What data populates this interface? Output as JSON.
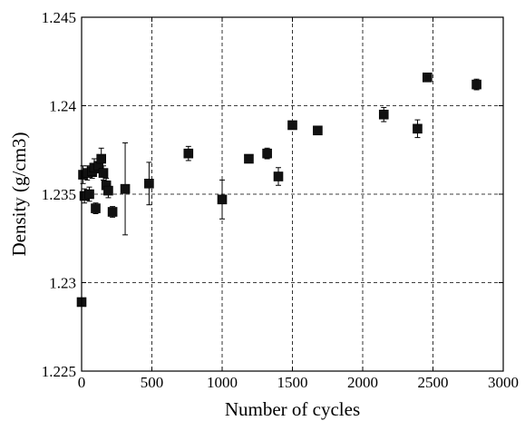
{
  "chart_data": {
    "type": "scatter",
    "title": "",
    "xlabel": "Number of cycles",
    "ylabel": "Density (g/cm3)",
    "xlim": [
      0,
      3000
    ],
    "ylim": [
      1.225,
      1.245
    ],
    "xticks": [
      0,
      500,
      1000,
      1500,
      2000,
      2500,
      3000
    ],
    "yticks": [
      1.225,
      1.23,
      1.235,
      1.24,
      1.245
    ],
    "xtick_labels": [
      "0",
      "500",
      "1000",
      "1500",
      "2000",
      "2500",
      "3000"
    ],
    "ytick_labels": [
      "1.225",
      "1.23",
      "1.235",
      "1.24",
      "1.245"
    ],
    "grid": true,
    "marker": "square",
    "marker_color": "#111111",
    "series": [
      {
        "points": [
          {
            "x": 0,
            "y": 1.2289,
            "err": 0.0
          },
          {
            "x": 10,
            "y": 1.2361,
            "err": 0.0005
          },
          {
            "x": 20,
            "y": 1.2349,
            "err": 0.0004
          },
          {
            "x": 40,
            "y": 1.2362,
            "err": 0.0004
          },
          {
            "x": 55,
            "y": 1.235,
            "err": 0.0004
          },
          {
            "x": 75,
            "y": 1.2363,
            "err": 0.0004
          },
          {
            "x": 90,
            "y": 1.2365,
            "err": 0.0005
          },
          {
            "x": 100,
            "y": 1.2342,
            "err": 0.0003
          },
          {
            "x": 120,
            "y": 1.2366,
            "err": 0.0004
          },
          {
            "x": 140,
            "y": 1.237,
            "err": 0.0006
          },
          {
            "x": 155,
            "y": 1.2362,
            "err": 0.0004
          },
          {
            "x": 175,
            "y": 1.2355,
            "err": 0.0004
          },
          {
            "x": 190,
            "y": 1.2352,
            "err": 0.0004
          },
          {
            "x": 220,
            "y": 1.234,
            "err": 0.0003
          },
          {
            "x": 310,
            "y": 1.2353,
            "err": 0.0026
          },
          {
            "x": 480,
            "y": 1.2356,
            "err": 0.0012
          },
          {
            "x": 760,
            "y": 1.2373,
            "err": 0.0004
          },
          {
            "x": 1000,
            "y": 1.2347,
            "err": 0.0011
          },
          {
            "x": 1190,
            "y": 1.237,
            "err": 0.0002
          },
          {
            "x": 1320,
            "y": 1.2373,
            "err": 0.0003
          },
          {
            "x": 1400,
            "y": 1.236,
            "err": 0.0005
          },
          {
            "x": 1500,
            "y": 1.2389,
            "err": 0.0002
          },
          {
            "x": 1680,
            "y": 1.2386,
            "err": 0.0002
          },
          {
            "x": 2150,
            "y": 1.2395,
            "err": 0.0004
          },
          {
            "x": 2390,
            "y": 1.2387,
            "err": 0.0005
          },
          {
            "x": 2460,
            "y": 1.2416,
            "err": 0.0002
          },
          {
            "x": 2810,
            "y": 1.2412,
            "err": 0.0003
          }
        ]
      }
    ]
  }
}
